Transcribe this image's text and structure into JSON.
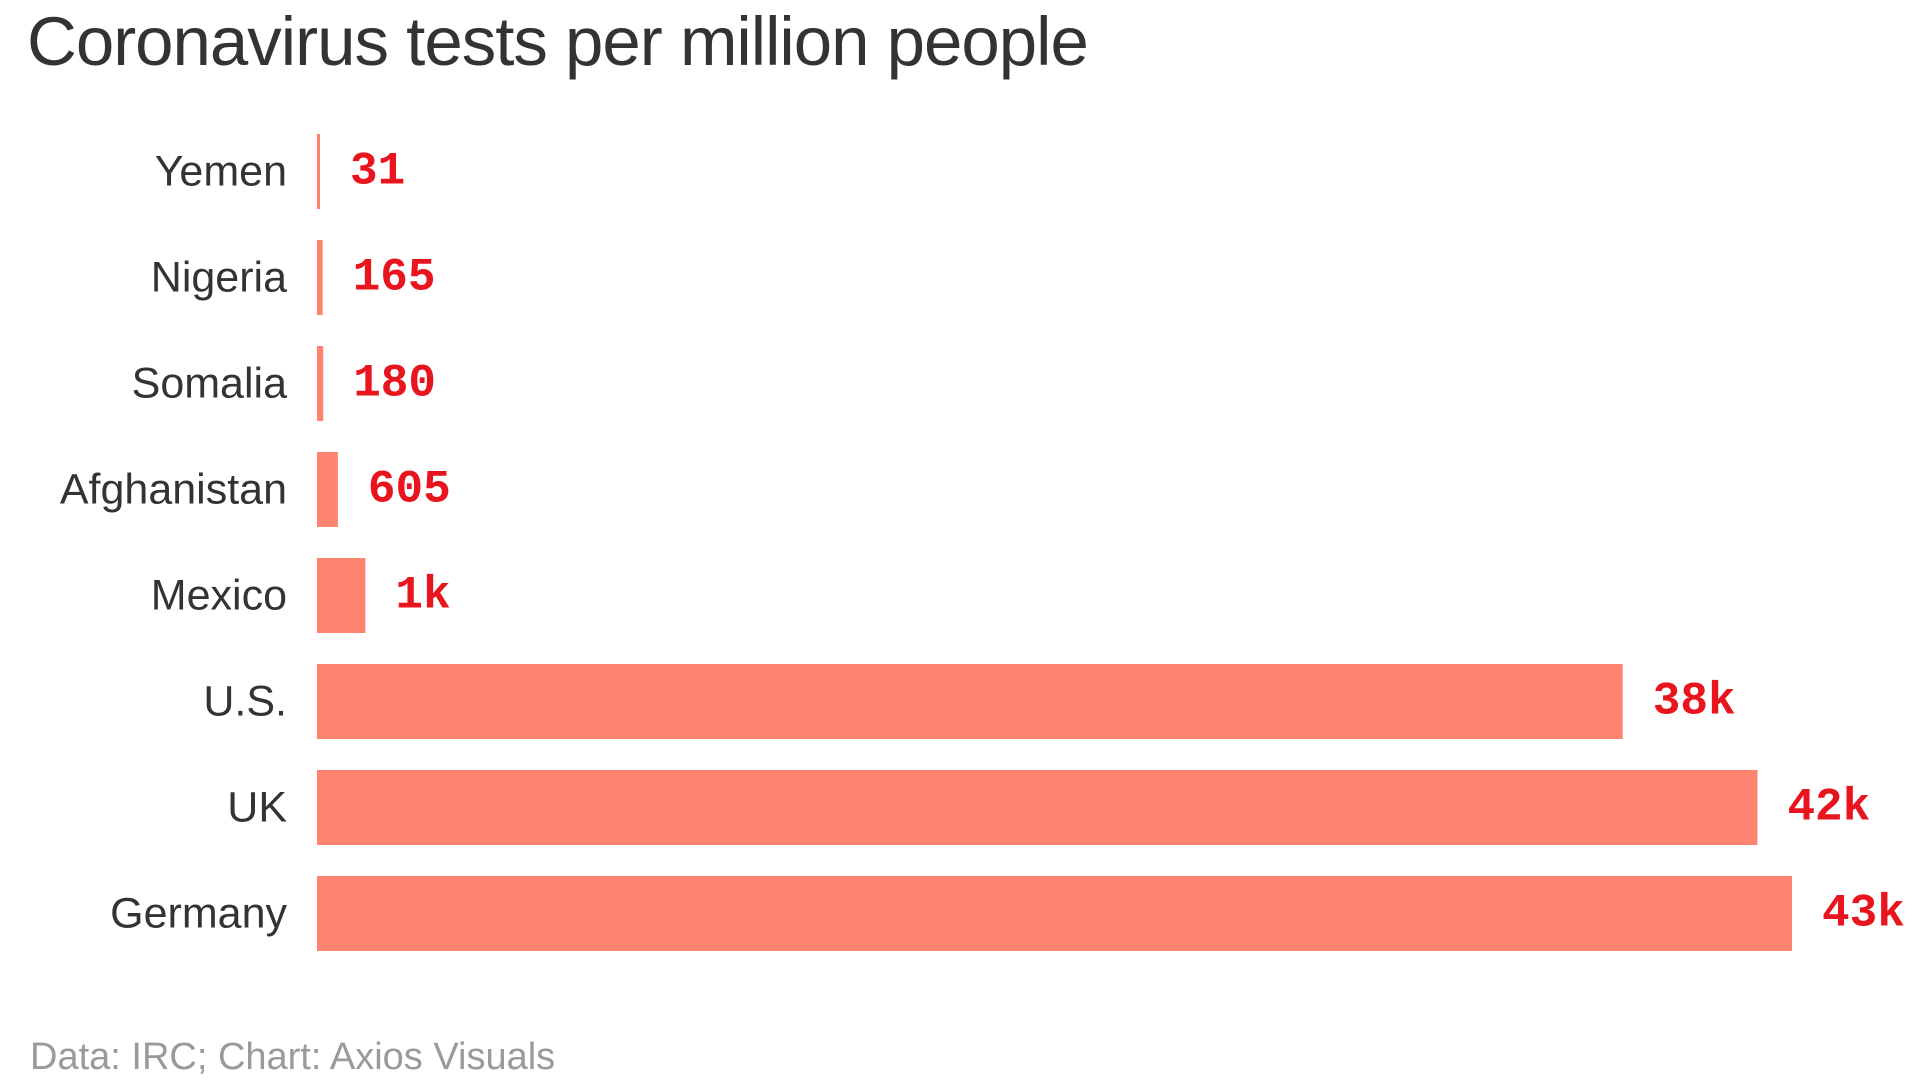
{
  "chart_data": {
    "type": "bar",
    "orientation": "horizontal",
    "title": "Coronavirus tests per million people",
    "categories": [
      "Yemen",
      "Nigeria",
      "Somalia",
      "Afghanistan",
      "Mexico",
      "U.S.",
      "UK",
      "Germany"
    ],
    "values": [
      31,
      165,
      180,
      605,
      1400,
      37800,
      41700,
      42700
    ],
    "value_labels": [
      "31",
      "165",
      "180",
      "605",
      "1k",
      "38k",
      "42k",
      "43k"
    ],
    "xlabel": "",
    "ylabel": "",
    "xlim": [
      0,
      42700
    ],
    "grid": false,
    "legend": "none"
  },
  "source": "Data: IRC; Chart: Axios Visuals",
  "colors": {
    "bar": "#fe8471",
    "value_label": "#e8141e",
    "title": "#333333",
    "category_label": "#333333",
    "source": "#9a9a9a"
  }
}
